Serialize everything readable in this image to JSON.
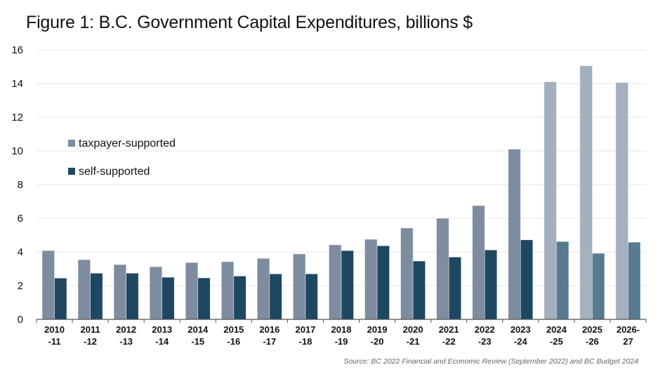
{
  "chart_data": {
    "type": "bar",
    "title": "Figure 1: B.C. Government Capital Expenditures, billions $",
    "xlabel": "",
    "ylabel": "",
    "ylim": [
      0,
      16
    ],
    "yticks": [
      0,
      2,
      4,
      6,
      8,
      10,
      12,
      14,
      16
    ],
    "grid": true,
    "legend_position": "left",
    "categories": [
      [
        "2010",
        "-11"
      ],
      [
        "2011",
        "-12"
      ],
      [
        "2012",
        "-13"
      ],
      [
        "2013",
        "-14"
      ],
      [
        "2014",
        "-15"
      ],
      [
        "2015",
        "-16"
      ],
      [
        "2016",
        "-17"
      ],
      [
        "2017",
        "-18"
      ],
      [
        "2018",
        "-19"
      ],
      [
        "2019",
        "-20"
      ],
      [
        "2020",
        "-21"
      ],
      [
        "2021",
        "-22"
      ],
      [
        "2022",
        "-23"
      ],
      [
        "2023",
        "-24"
      ],
      [
        "2024",
        "-25"
      ],
      [
        "2025",
        "-26"
      ],
      [
        "2026-",
        "27"
      ]
    ],
    "forecast_start_index": 14,
    "series": [
      {
        "name": "taxpayer-supported",
        "color": "#7D8C9E",
        "forecast_color": "#A3B0BD",
        "values": [
          4.08,
          3.54,
          3.25,
          3.12,
          3.37,
          3.42,
          3.62,
          3.88,
          4.42,
          4.75,
          5.42,
          6.0,
          6.75,
          10.1,
          14.1,
          15.05,
          14.05
        ]
      },
      {
        "name": "self-supported",
        "color": "#1E4761",
        "forecast_color": "#577A91",
        "values": [
          2.45,
          2.74,
          2.74,
          2.5,
          2.46,
          2.57,
          2.7,
          2.7,
          4.08,
          4.37,
          3.46,
          3.7,
          4.12,
          4.72,
          4.62,
          3.92,
          4.58
        ]
      }
    ],
    "source": "Source: BC 2022 Financial and Economic Review (September 2022) and BC Budget 2024"
  }
}
